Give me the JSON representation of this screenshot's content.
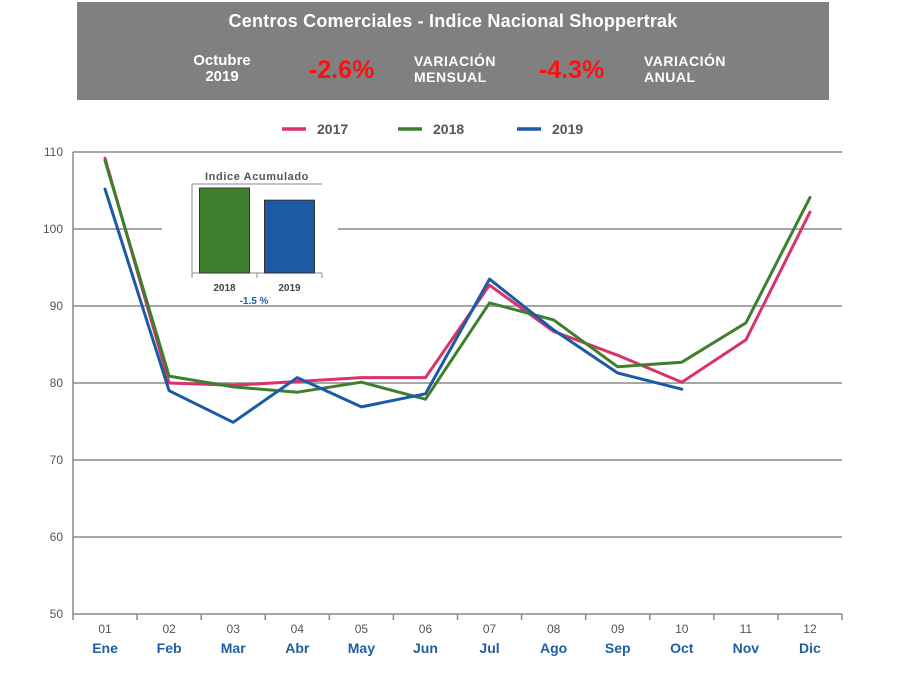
{
  "header": {
    "title": "Centros Comerciales - Indice Nacional Shoppertrak",
    "period_line1": "Octubre",
    "period_line2": "2019",
    "monthly_value": "-2.6%",
    "monthly_label_line1": "VARIACIÓN",
    "monthly_label_line2": "MENSUAL",
    "annual_value": "-4.3%",
    "annual_label_line1": "VARIACIÓN",
    "annual_label_line2": "ANUAL"
  },
  "colors": {
    "s2017": "#d9336a",
    "s2018": "#3e7f2e",
    "s2019": "#1c5aa5",
    "grid": "#8a8a8a",
    "banner": "#808080",
    "red_text": "#ff1010"
  },
  "chart_data": [
    {
      "type": "line",
      "title": "",
      "ylim": [
        50,
        110
      ],
      "yticks": [
        50,
        60,
        70,
        80,
        90,
        100,
        110
      ],
      "ytick_labels": [
        "50",
        "60",
        "70",
        "80",
        "90",
        "100",
        "110"
      ],
      "categories": [
        "01",
        "02",
        "03",
        "04",
        "05",
        "06",
        "07",
        "08",
        "09",
        "10",
        "11",
        "12"
      ],
      "category_names": [
        "Ene",
        "Feb",
        "Mar",
        "Abr",
        "May",
        "Jun",
        "Jul",
        "Ago",
        "Sep",
        "Oct",
        "Nov",
        "Dic"
      ],
      "legend_position": "top",
      "series": [
        {
          "name": "2017",
          "color": "#d9336a",
          "values": [
            109.2,
            80.0,
            79.7,
            80.2,
            80.7,
            80.7,
            92.7,
            86.7,
            83.6,
            80.1,
            85.6,
            102.2
          ]
        },
        {
          "name": "2018",
          "color": "#3e7f2e",
          "values": [
            108.9,
            80.9,
            79.5,
            78.8,
            80.1,
            77.9,
            90.4,
            88.2,
            82.1,
            82.7,
            87.8,
            104.1
          ]
        },
        {
          "name": "2019",
          "color": "#1c5aa5",
          "values": [
            105.2,
            79.0,
            74.9,
            80.7,
            76.9,
            78.6,
            93.5,
            86.9,
            81.3,
            79.2,
            null,
            null
          ]
        }
      ]
    },
    {
      "type": "bar",
      "title": "Indice Acumulado",
      "categories": [
        "2018",
        "2019"
      ],
      "values": [
        105.5,
        104.0
      ],
      "colors": [
        "#3e7f2e",
        "#1c5aa5"
      ],
      "ylim": [
        95,
        106
      ],
      "annotation": "-1.5 %"
    }
  ]
}
